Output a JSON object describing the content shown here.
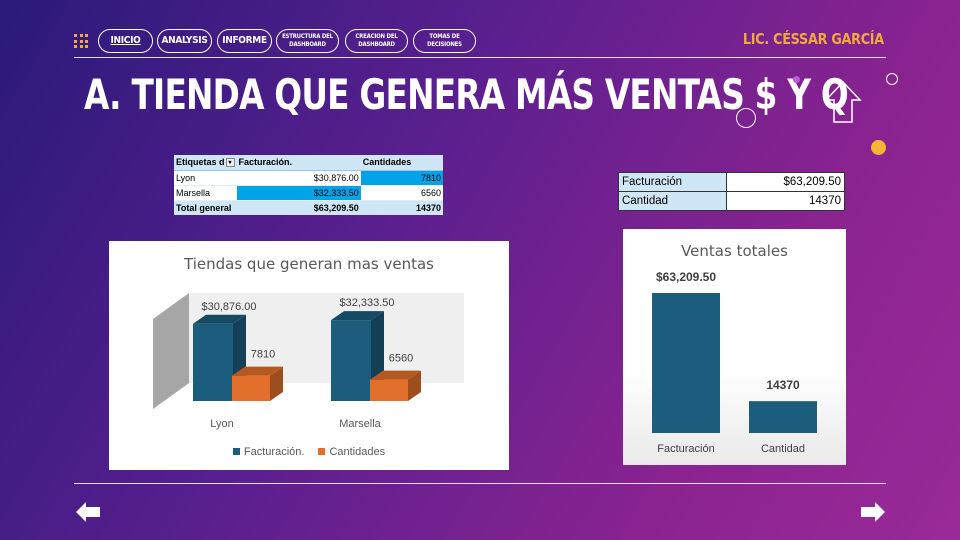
{
  "nav": {
    "items": [
      {
        "label": "INICIO",
        "active": true
      },
      {
        "label": "ANALYSIS"
      },
      {
        "label": "INFORME"
      },
      {
        "label_lines": [
          "ESTRUCTURA DEL",
          "DASHBOARD"
        ]
      },
      {
        "label_lines": [
          "CREACION DEL",
          "DASHBOARD"
        ]
      },
      {
        "label_lines": [
          "TOMAS DE",
          "DECISIONES"
        ]
      }
    ]
  },
  "author": "LIC. CÉSSAR GARCÍA",
  "title": "A. TIENDA QUE GENERA MÁS VENTAS $ Y Q",
  "pivot": {
    "headers": [
      "Etiquetas d",
      "Facturación.",
      "Cantidades"
    ],
    "rows": [
      {
        "label": "Lyon",
        "facturacion": "$30,876.00",
        "cantidades": "7810"
      },
      {
        "label": "Marsella",
        "facturacion": "$32,333.50",
        "cantidades": "6560"
      }
    ],
    "total": {
      "label": "Total general",
      "facturacion": "$63,209.50",
      "cantidades": "14370"
    }
  },
  "summary": {
    "rows": [
      {
        "label": "Facturación",
        "value": "$63,209.50"
      },
      {
        "label": "Cantidad",
        "value": "14370"
      }
    ]
  },
  "chart_data": [
    {
      "type": "bar",
      "title": "Tiendas que generan mas ventas",
      "categories": [
        "Lyon",
        "Marsella"
      ],
      "series": [
        {
          "name": "Facturación.",
          "values": [
            30876.0,
            32333.5
          ],
          "labels": [
            "$30,876.00",
            "$32,333.50"
          ],
          "color": "#1c5c7c"
        },
        {
          "name": "Cantidades",
          "values": [
            7810,
            6560
          ],
          "labels": [
            "7810",
            "6560"
          ],
          "color": "#e26f2b"
        }
      ],
      "legend": "bottom"
    },
    {
      "type": "bar",
      "title": "Ventas totales",
      "categories": [
        "Facturación",
        "Cantidad"
      ],
      "values": [
        63209.5,
        14370
      ],
      "labels": [
        "$63,209.50",
        "14370"
      ],
      "color": "#1c5c7c"
    }
  ],
  "colors": {
    "accent": "#f2a93b",
    "bar_blue": "#1c5c7c",
    "bar_orange": "#e26f2b",
    "table_header": "#cfe6f6",
    "highlight": "#00a2e8"
  }
}
